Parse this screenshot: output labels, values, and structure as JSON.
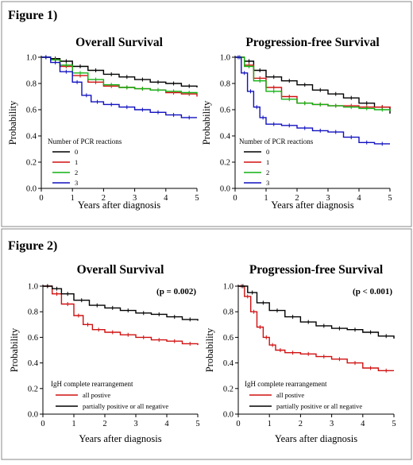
{
  "figures": [
    {
      "label": "Figure 1)"
    },
    {
      "label": "Figure 2)"
    }
  ],
  "chart_data": [
    {
      "type": "line",
      "title": "Overall Survival",
      "xlabel": "Years after diagnosis",
      "ylabel": "Probability",
      "xlim": [
        0,
        5
      ],
      "ylim": [
        0,
        1
      ],
      "xticks": [
        "0",
        "1",
        "2",
        "3",
        "4",
        "5"
      ],
      "yticks": [
        "0.0",
        "0.2",
        "0.4",
        "0.6",
        "0.8",
        "1.0"
      ],
      "legend_title": "Number of PCR reactions",
      "annotation": "",
      "series": [
        {
          "name": "0",
          "color": "#000000",
          "x": [
            0,
            0.3,
            0.6,
            1,
            1.5,
            2,
            2.5,
            3,
            3.5,
            4,
            4.5,
            5
          ],
          "y": [
            1.0,
            0.99,
            0.97,
            0.93,
            0.9,
            0.87,
            0.85,
            0.83,
            0.81,
            0.8,
            0.78,
            0.77
          ]
        },
        {
          "name": "1",
          "color": "#d01010",
          "x": [
            0,
            0.3,
            0.6,
            1,
            1.5,
            2,
            2.5,
            3,
            3.5,
            4,
            4.5,
            5
          ],
          "y": [
            1.0,
            0.98,
            0.93,
            0.86,
            0.81,
            0.78,
            0.77,
            0.76,
            0.75,
            0.73,
            0.72,
            0.7
          ]
        },
        {
          "name": "2",
          "color": "#10b010",
          "x": [
            0,
            0.3,
            0.6,
            1,
            1.5,
            2,
            2.5,
            3,
            3.5,
            4,
            4.5,
            5
          ],
          "y": [
            1.0,
            0.98,
            0.94,
            0.88,
            0.83,
            0.79,
            0.77,
            0.76,
            0.75,
            0.74,
            0.73,
            0.72
          ]
        },
        {
          "name": "3",
          "color": "#1010c0",
          "x": [
            0,
            0.3,
            0.6,
            1,
            1.3,
            1.6,
            2,
            2.5,
            3,
            3.5,
            4,
            4.5,
            5
          ],
          "y": [
            1.0,
            0.96,
            0.89,
            0.81,
            0.71,
            0.66,
            0.64,
            0.62,
            0.6,
            0.58,
            0.56,
            0.54,
            0.54
          ]
        }
      ]
    },
    {
      "type": "line",
      "title": "Progression-free Survival",
      "xlabel": "Years after diagnosis",
      "ylabel": "Probability",
      "xlim": [
        0,
        5
      ],
      "ylim": [
        0,
        1
      ],
      "xticks": [
        "0",
        "1",
        "2",
        "3",
        "4",
        "5"
      ],
      "yticks": [
        "0.0",
        "0.2",
        "0.4",
        "0.6",
        "0.8",
        "1.0"
      ],
      "legend_title": "Number of PCR reactions",
      "annotation": "",
      "series": [
        {
          "name": "0",
          "color": "#000000",
          "x": [
            0,
            0.3,
            0.6,
            1,
            1.5,
            2,
            2.5,
            3,
            3.5,
            4,
            4.5,
            5
          ],
          "y": [
            1.0,
            0.97,
            0.9,
            0.85,
            0.82,
            0.79,
            0.75,
            0.72,
            0.69,
            0.65,
            0.62,
            0.57
          ]
        },
        {
          "name": "1",
          "color": "#d01010",
          "x": [
            0,
            0.3,
            0.6,
            1,
            1.5,
            2,
            2.5,
            3,
            3.5,
            4,
            4.5,
            5
          ],
          "y": [
            1.0,
            0.94,
            0.84,
            0.77,
            0.7,
            0.65,
            0.64,
            0.63,
            0.63,
            0.62,
            0.62,
            0.61
          ]
        },
        {
          "name": "2",
          "color": "#10b010",
          "x": [
            0,
            0.3,
            0.6,
            1,
            1.5,
            2,
            2.5,
            3,
            3.5,
            4,
            4.5,
            5
          ],
          "y": [
            1.0,
            0.93,
            0.82,
            0.74,
            0.68,
            0.65,
            0.64,
            0.63,
            0.62,
            0.61,
            0.6,
            0.59
          ]
        },
        {
          "name": "3",
          "color": "#1010c0",
          "x": [
            0,
            0.2,
            0.4,
            0.6,
            0.8,
            1,
            1.5,
            2,
            2.5,
            3,
            3.5,
            4,
            4.5,
            5
          ],
          "y": [
            1.0,
            0.88,
            0.74,
            0.62,
            0.54,
            0.49,
            0.48,
            0.46,
            0.44,
            0.43,
            0.39,
            0.35,
            0.34,
            0.34
          ]
        }
      ]
    },
    {
      "type": "line",
      "title": "Overall Survival",
      "xlabel": "Years after diagnosis",
      "ylabel": "Probability",
      "xlim": [
        0,
        5
      ],
      "ylim": [
        0,
        1
      ],
      "xticks": [
        "0",
        "1",
        "2",
        "3",
        "4",
        "5"
      ],
      "yticks": [
        "0.0",
        "0.2",
        "0.4",
        "0.6",
        "0.8",
        "1.0"
      ],
      "legend_title": "IgH complete rearrangement",
      "annotation": "(p = 0.002)",
      "series": [
        {
          "name": "all postive",
          "color": "#d01010",
          "x": [
            0,
            0.3,
            0.6,
            1,
            1.3,
            1.6,
            2,
            2.5,
            3,
            3.5,
            4,
            4.5,
            5
          ],
          "y": [
            1.0,
            0.94,
            0.86,
            0.77,
            0.7,
            0.66,
            0.64,
            0.62,
            0.6,
            0.58,
            0.57,
            0.55,
            0.54
          ]
        },
        {
          "name": "partially positive or all negative",
          "color": "#000000",
          "x": [
            0,
            0.3,
            0.6,
            1,
            1.5,
            2,
            2.5,
            3,
            3.5,
            4,
            4.5,
            5
          ],
          "y": [
            1.0,
            0.98,
            0.94,
            0.89,
            0.85,
            0.83,
            0.81,
            0.79,
            0.78,
            0.76,
            0.74,
            0.73
          ]
        }
      ]
    },
    {
      "type": "line",
      "title": "Progression-free Survival",
      "xlabel": "Years after diagnosis",
      "ylabel": "Probability",
      "xlim": [
        0,
        5
      ],
      "ylim": [
        0,
        1
      ],
      "xticks": [
        "0",
        "1",
        "2",
        "3",
        "4",
        "5"
      ],
      "yticks": [
        "0.0",
        "0.2",
        "0.4",
        "0.6",
        "0.8",
        "1.0"
      ],
      "legend_title": "IgH complete rearrangement",
      "annotation": "(p < 0.001)",
      "series": [
        {
          "name": "all postive",
          "color": "#d01010",
          "x": [
            0,
            0.2,
            0.4,
            0.6,
            0.8,
            1,
            1.2,
            1.5,
            2,
            2.5,
            3,
            3.5,
            4,
            4.5,
            5
          ],
          "y": [
            1.0,
            0.92,
            0.8,
            0.68,
            0.6,
            0.54,
            0.5,
            0.48,
            0.47,
            0.45,
            0.43,
            0.4,
            0.36,
            0.34,
            0.34
          ]
        },
        {
          "name": "partially positive or all negative",
          "color": "#000000",
          "x": [
            0,
            0.3,
            0.6,
            1,
            1.5,
            2,
            2.5,
            3,
            3.5,
            4,
            4.5,
            5
          ],
          "y": [
            1.0,
            0.95,
            0.87,
            0.81,
            0.76,
            0.72,
            0.69,
            0.67,
            0.66,
            0.64,
            0.61,
            0.59
          ]
        }
      ]
    }
  ]
}
